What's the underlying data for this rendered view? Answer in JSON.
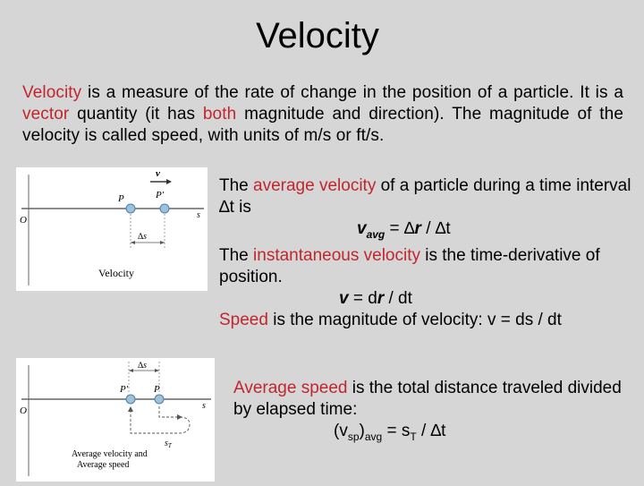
{
  "title": "Velocity",
  "intro": {
    "w1": "Velocity",
    "t1": " is a measure of the rate of change in the position of a particle. It is a ",
    "w2": "vector",
    "t2": " quantity (it has ",
    "w3": "both",
    "t3": " magnitude and direction).  The magnitude of the velocity is called speed, with units of m/s or ft/s."
  },
  "avg": {
    "t1": "The ",
    "w1": "average velocity",
    "t2": " of a particle during a time interval ∆t is",
    "eq_v": "v",
    "eq_sub": "avg",
    "eq_mid": " = ∆",
    "eq_r": "r",
    "eq_end": " / ∆t"
  },
  "inst": {
    "t1": "The ",
    "w1": "instantaneous velocity",
    "t2": " is the time-derivative of position.",
    "eq_v": "v",
    "eq_mid": " = d",
    "eq_r": "r",
    "eq_end": " / dt"
  },
  "speed": {
    "w1": "Speed",
    "t1": " is the magnitude of velocity: v = ds / dt"
  },
  "avg_speed": {
    "w1": "Average speed",
    "t1": " is the total distance traveled divided by elapsed time:",
    "eq_a": "(v",
    "eq_sub1": "sp",
    "eq_b": ")",
    "eq_sub2": "avg",
    "eq_c": " = s",
    "eq_sub3": "T",
    "eq_d": " / ∆t"
  },
  "fig1": {
    "v": "v",
    "p": "P",
    "pp": "P'",
    "o": "O",
    "s": "s",
    "ds": "∆s",
    "caption": "Velocity"
  },
  "fig2": {
    "ds": "∆s",
    "pp": "P'",
    "p": "P",
    "o": "O",
    "s": "s",
    "st": "s",
    "st_sub": "T",
    "caption1": "Average velocity and",
    "caption2": "Average speed"
  }
}
